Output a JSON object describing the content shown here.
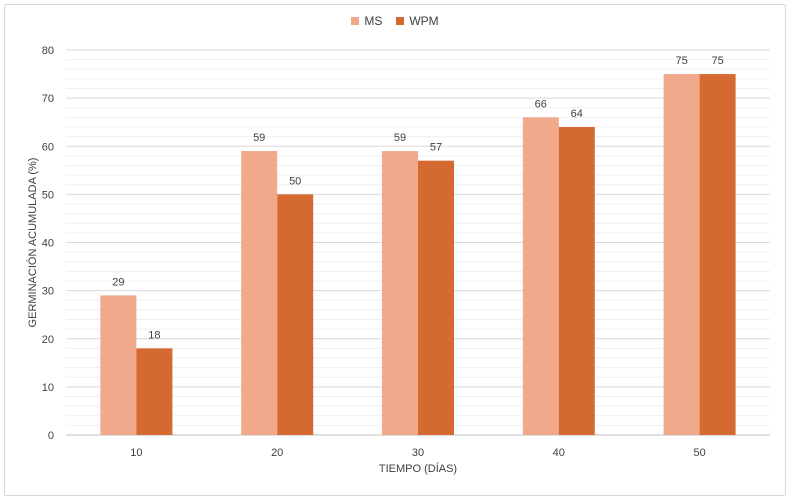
{
  "chart_data": {
    "type": "bar",
    "xlabel": "TIEMPO (DÍAS)",
    "ylabel": "GERMINACIÓN ACUMULADA (%)",
    "categories": [
      "10",
      "20",
      "30",
      "40",
      "50"
    ],
    "ylim": [
      0,
      80
    ],
    "yticks": [
      0,
      10,
      20,
      30,
      40,
      50,
      60,
      70,
      80
    ],
    "grid": true,
    "legend_position": "top-center",
    "series": [
      {
        "name": "MS",
        "values": [
          29,
          59,
          59,
          66,
          75
        ],
        "color": "#F0A98A"
      },
      {
        "name": "WPM",
        "values": [
          18,
          50,
          57,
          64,
          75
        ],
        "color": "#D46A2F"
      }
    ]
  }
}
